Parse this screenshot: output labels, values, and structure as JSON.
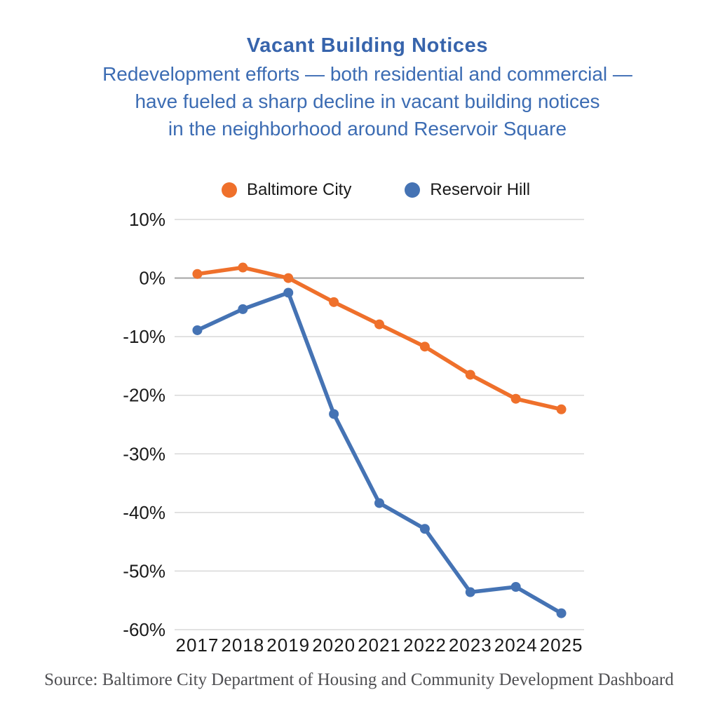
{
  "header": {
    "title": "Vacant Building Notices",
    "subtitle_lines": [
      "Redevelopment efforts — both residential and commercial —",
      "have fueled a sharp decline in vacant building notices",
      "in the neighborhood around Reservoir Square"
    ],
    "title_color": "#3764AC",
    "subtitle_color": "#3C6CB3"
  },
  "chart_data": {
    "type": "line",
    "x": [
      "2017",
      "2018",
      "2019",
      "2020",
      "2021",
      "2022",
      "2023",
      "2024",
      "2025"
    ],
    "series": [
      {
        "name": "Baltimore City",
        "color": "#EF702B",
        "values": [
          0.7,
          1.8,
          0.0,
          -4.1,
          -7.9,
          -11.7,
          -16.5,
          -20.6,
          -22.4
        ]
      },
      {
        "name": "Reservoir Hill",
        "color": "#4573B4",
        "values": [
          -8.9,
          -5.3,
          -2.5,
          -23.2,
          -38.4,
          -42.8,
          -53.6,
          -52.7,
          -57.2
        ]
      }
    ],
    "ylim": [
      -60,
      10
    ],
    "y_ticks": [
      10,
      0,
      -10,
      -20,
      -30,
      -40,
      -50,
      -60
    ],
    "y_tick_labels": [
      "10%",
      "0%",
      "-10%",
      "-20%",
      "-30%",
      "-40%",
      "-50%",
      "-60%"
    ],
    "grid": true,
    "legend_position": "top",
    "gridline_color": "#D8D8D8",
    "zero_line_color": "#A8A8A8"
  },
  "footer": {
    "source": "Source: Baltimore City Department of Housing and Community Development Dashboard"
  }
}
